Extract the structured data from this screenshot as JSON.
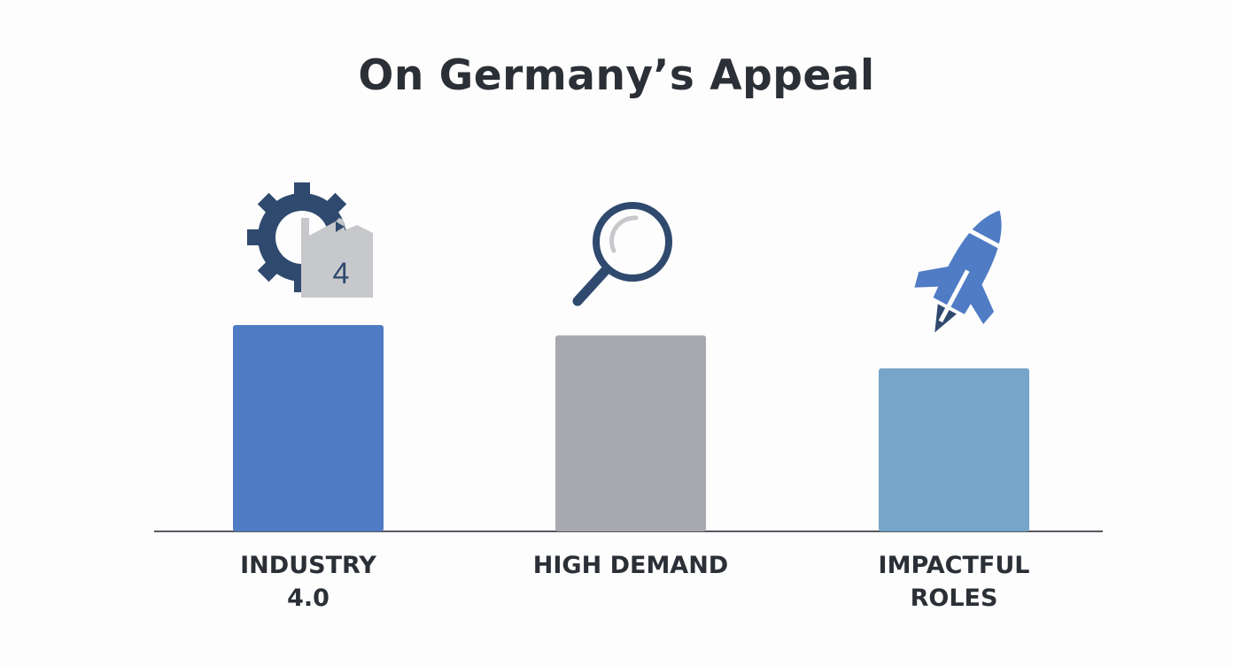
{
  "chart_data": {
    "type": "bar",
    "title": "On Germany’s Appeal",
    "categories": [
      "INDUSTRY 4.0",
      "HIGH DEMAND",
      "IMPACTFUL ROLES"
    ],
    "values": [
      100,
      95,
      79
    ],
    "colors": [
      "#4f7cc4",
      "#a7a9ae",
      "#76a5c9"
    ],
    "icons": [
      "gear-factory-icon",
      "magnifier-icon",
      "rocket-icon"
    ],
    "icon_text": "4",
    "ylim": [
      0,
      100
    ],
    "grid": false,
    "legend": "none"
  }
}
